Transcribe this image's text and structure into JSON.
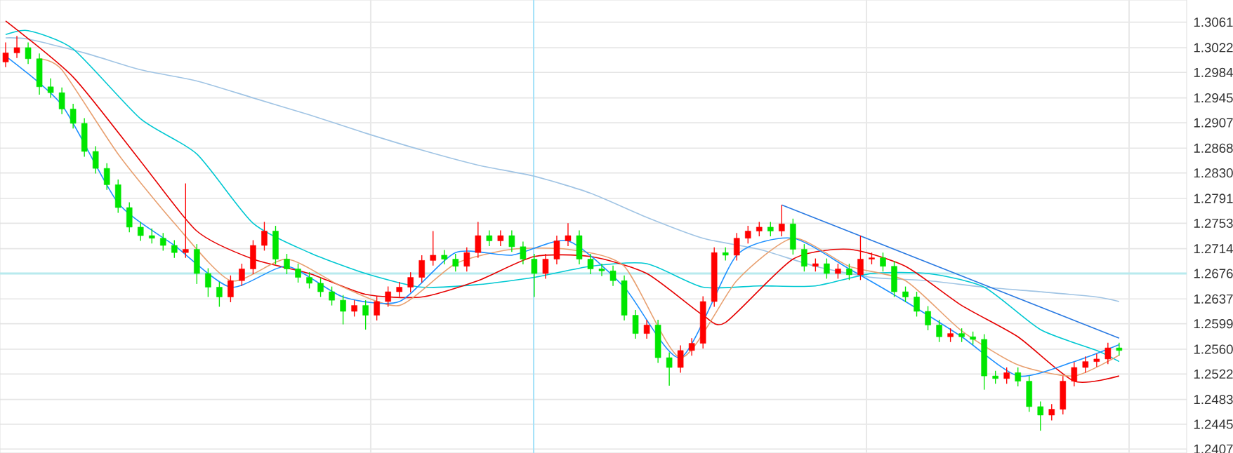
{
  "chart_data": {
    "type": "candlestick",
    "categories": [
      null,
      null,
      null,
      null,
      null,
      null,
      null,
      null,
      null,
      null,
      null,
      null,
      null,
      null,
      null,
      null,
      null,
      null,
      null,
      null,
      null,
      null,
      null,
      null,
      null,
      null,
      null,
      null,
      null,
      null,
      null,
      null,
      null,
      null,
      null,
      null,
      null,
      null,
      null,
      null,
      null,
      null,
      null,
      null,
      null,
      null,
      null,
      null,
      null,
      null,
      null,
      null,
      null,
      null,
      null,
      null,
      null,
      null,
      null,
      null,
      null,
      null,
      null,
      null,
      null,
      null,
      null,
      null,
      null,
      null,
      null,
      null,
      null,
      null,
      null,
      null,
      null,
      null,
      null,
      null,
      null,
      null,
      null,
      null,
      null,
      null,
      null,
      null,
      null,
      null,
      null,
      null,
      null,
      null,
      null,
      null,
      null,
      null,
      null,
      null
    ],
    "ohlc": [
      [
        1.3,
        1.303,
        1.2992,
        1.3014
      ],
      [
        1.3014,
        1.304,
        1.3006,
        1.3022
      ],
      [
        1.3022,
        1.303,
        1.2997,
        1.3005
      ],
      [
        1.3005,
        1.3013,
        1.295,
        1.2962
      ],
      [
        1.2962,
        1.2975,
        1.2945,
        1.2953
      ],
      [
        1.2953,
        1.2961,
        1.292,
        1.2928
      ],
      [
        1.2928,
        1.2936,
        1.2898,
        1.2906
      ],
      [
        1.2906,
        1.2914,
        1.2855,
        1.2863
      ],
      [
        1.2863,
        1.2871,
        1.2829,
        1.2837
      ],
      [
        1.2837,
        1.2845,
        1.2804,
        1.2812
      ],
      [
        1.2812,
        1.282,
        1.2769,
        1.2777
      ],
      [
        1.2777,
        1.2785,
        1.2739,
        1.2747
      ],
      [
        1.2747,
        1.2755,
        1.2726,
        1.2734
      ],
      [
        1.2734,
        1.2745,
        1.2722,
        1.273
      ],
      [
        1.273,
        1.2738,
        1.2711,
        1.2719
      ],
      [
        1.2719,
        1.2727,
        1.27,
        1.2708
      ],
      [
        1.2708,
        1.2814,
        1.27,
        1.2713
      ],
      [
        1.2713,
        1.2721,
        1.266,
        1.2676
      ],
      [
        1.2676,
        1.2684,
        1.264,
        1.2655
      ],
      [
        1.2655,
        1.2663,
        1.2625,
        1.264
      ],
      [
        1.264,
        1.2673,
        1.2632,
        1.2665
      ],
      [
        1.2665,
        1.2691,
        1.2657,
        1.2683
      ],
      [
        1.2683,
        1.2727,
        1.2675,
        1.2719
      ],
      [
        1.2719,
        1.2755,
        1.2711,
        1.2741
      ],
      [
        1.2741,
        1.2749,
        1.269,
        1.2698
      ],
      [
        1.2698,
        1.2706,
        1.2675,
        1.2683
      ],
      [
        1.2683,
        1.2691,
        1.2662,
        1.267
      ],
      [
        1.267,
        1.2678,
        1.2653,
        1.2661
      ],
      [
        1.2661,
        1.2669,
        1.264,
        1.2648
      ],
      [
        1.2648,
        1.2656,
        1.2627,
        1.2635
      ],
      [
        1.2635,
        1.2643,
        1.2598,
        1.2618
      ],
      [
        1.2618,
        1.2635,
        1.261,
        1.2627
      ],
      [
        1.2627,
        1.2635,
        1.259,
        1.2612
      ],
      [
        1.2612,
        1.2641,
        1.2604,
        1.2633
      ],
      [
        1.2633,
        1.2656,
        1.2625,
        1.2648
      ],
      [
        1.2648,
        1.2663,
        1.264,
        1.2655
      ],
      [
        1.2655,
        1.2678,
        1.2647,
        1.267
      ],
      [
        1.267,
        1.2704,
        1.2662,
        1.2696
      ],
      [
        1.2696,
        1.2741,
        1.2688,
        1.2704
      ],
      [
        1.2704,
        1.2712,
        1.269,
        1.2698
      ],
      [
        1.2698,
        1.2706,
        1.2679,
        1.2687
      ],
      [
        1.2687,
        1.2716,
        1.2679,
        1.2708
      ],
      [
        1.2708,
        1.2755,
        1.27,
        1.2734
      ],
      [
        1.2734,
        1.2742,
        1.2718,
        1.2726
      ],
      [
        1.2726,
        1.2742,
        1.2718,
        1.2734
      ],
      [
        1.2734,
        1.2742,
        1.2709,
        1.2717
      ],
      [
        1.2717,
        1.2725,
        1.269,
        1.2698
      ],
      [
        1.2698,
        1.2706,
        1.264,
        1.2676
      ],
      [
        1.2676,
        1.2706,
        1.2668,
        1.2698
      ],
      [
        1.2698,
        1.2734,
        1.269,
        1.2726
      ],
      [
        1.2726,
        1.2753,
        1.2718,
        1.2734
      ],
      [
        1.2734,
        1.2742,
        1.269,
        1.2698
      ],
      [
        1.2698,
        1.2706,
        1.2675,
        1.2683
      ],
      [
        1.2683,
        1.2691,
        1.2672,
        1.268
      ],
      [
        1.268,
        1.2688,
        1.2657,
        1.2665
      ],
      [
        1.2665,
        1.2673,
        1.2604,
        1.2612
      ],
      [
        1.2612,
        1.262,
        1.2576,
        1.2584
      ],
      [
        1.2584,
        1.2605,
        1.2576,
        1.2597
      ],
      [
        1.2597,
        1.2605,
        1.2539,
        1.2547
      ],
      [
        1.2547,
        1.2555,
        1.2504,
        1.2532
      ],
      [
        1.2532,
        1.2566,
        1.2524,
        1.2558
      ],
      [
        1.2558,
        1.2577,
        1.255,
        1.2569
      ],
      [
        1.2569,
        1.2641,
        1.2561,
        1.2633
      ],
      [
        1.2633,
        1.2716,
        1.2625,
        1.2708
      ],
      [
        1.2708,
        1.2716,
        1.2696,
        1.2704
      ],
      [
        1.2704,
        1.2738,
        1.2696,
        1.273
      ],
      [
        1.273,
        1.2749,
        1.2722,
        1.2741
      ],
      [
        1.2741,
        1.2755,
        1.2733,
        1.2747
      ],
      [
        1.2747,
        1.2755,
        1.2733,
        1.2741
      ],
      [
        1.2741,
        1.2781,
        1.2733,
        1.2752
      ],
      [
        1.2752,
        1.276,
        1.2705,
        1.2713
      ],
      [
        1.2713,
        1.2721,
        1.2679,
        1.2687
      ],
      [
        1.2687,
        1.2699,
        1.2679,
        1.2691
      ],
      [
        1.2691,
        1.2699,
        1.2668,
        1.2676
      ],
      [
        1.2676,
        1.2691,
        1.2668,
        1.2683
      ],
      [
        1.2683,
        1.2691,
        1.2666,
        1.2674
      ],
      [
        1.2674,
        1.2734,
        1.2666,
        1.2698
      ],
      [
        1.2698,
        1.2708,
        1.269,
        1.27
      ],
      [
        1.27,
        1.2708,
        1.2679,
        1.2687
      ],
      [
        1.2687,
        1.2695,
        1.264,
        1.2648
      ],
      [
        1.2648,
        1.2656,
        1.2632,
        1.264
      ],
      [
        1.264,
        1.2648,
        1.261,
        1.2618
      ],
      [
        1.2618,
        1.2626,
        1.2589,
        1.2597
      ],
      [
        1.2597,
        1.2605,
        1.2571,
        1.2579
      ],
      [
        1.2579,
        1.2592,
        1.2571,
        1.2584
      ],
      [
        1.2584,
        1.2592,
        1.2571,
        1.2579
      ],
      [
        1.2579,
        1.2587,
        1.2567,
        1.2575
      ],
      [
        1.2575,
        1.2583,
        1.2498,
        1.2519
      ],
      [
        1.2519,
        1.2527,
        1.2507,
        1.2515
      ],
      [
        1.2515,
        1.2532,
        1.2507,
        1.2524
      ],
      [
        1.2524,
        1.2532,
        1.2503,
        1.2511
      ],
      [
        1.2511,
        1.2519,
        1.2464,
        1.2472
      ],
      [
        1.2472,
        1.248,
        1.2435,
        1.2459
      ],
      [
        1.2459,
        1.2476,
        1.2451,
        1.2468
      ],
      [
        1.2468,
        1.2519,
        1.246,
        1.2511
      ],
      [
        1.2511,
        1.254,
        1.2503,
        1.2532
      ],
      [
        1.2532,
        1.2549,
        1.2524,
        1.2541
      ],
      [
        1.2541,
        1.2553,
        1.2533,
        1.2545
      ],
      [
        1.2545,
        1.257,
        1.2537,
        1.2562
      ],
      [
        1.2562,
        1.257,
        1.255,
        1.2558
      ]
    ],
    "colors": [
      "#ff0000",
      "#ff0000",
      "#00e600",
      "#00e600",
      "#00e600",
      "#00e600",
      "#00e600",
      "#00e600",
      "#00e600",
      "#00e600",
      "#00e600",
      "#00e600",
      "#00e600",
      "#00e600",
      "#00e600",
      "#00e600",
      "#ff0000",
      "#00e600",
      "#00e600",
      "#00e600",
      "#ff0000",
      "#ff0000",
      "#ff0000",
      "#ff0000",
      "#00e600",
      "#00e600",
      "#00e600",
      "#00e600",
      "#00e600",
      "#00e600",
      "#00e600",
      "#ff0000",
      "#00e600",
      "#ff0000",
      "#ff0000",
      "#ff0000",
      "#ff0000",
      "#ff0000",
      "#ff0000",
      "#00e600",
      "#00e600",
      "#ff0000",
      "#ff0000",
      "#00e600",
      "#ff0000",
      "#00e600",
      "#00e600",
      "#00e600",
      "#ff0000",
      "#ff0000",
      "#ff0000",
      "#00e600",
      "#00e600",
      "#00e600",
      "#00e600",
      "#00e600",
      "#00e600",
      "#ff0000",
      "#00e600",
      "#00e600",
      "#ff0000",
      "#ff0000",
      "#ff0000",
      "#ff0000",
      "#00e600",
      "#ff0000",
      "#ff0000",
      "#ff0000",
      "#00e600",
      "#ff0000",
      "#00e600",
      "#00e600",
      "#ff0000",
      "#00e600",
      "#ff0000",
      "#00e600",
      "#ff0000",
      "#ff0000",
      "#00e600",
      "#00e600",
      "#00e600",
      "#00e600",
      "#00e600",
      "#00e600",
      "#ff0000",
      "#00e600",
      "#00e600",
      "#00e600",
      "#00e600",
      "#ff0000",
      "#00e600",
      "#00e600",
      "#00e600",
      "#ff0000",
      "#ff0000",
      "#ff0000",
      "#ff0000",
      "#ff0000",
      "#ff0000",
      "#00e600"
    ],
    "series": [
      {
        "type": "line",
        "color": "#a0c4e4",
        "values": [
          1.3037,
          null,
          1.3035,
          null,
          null,
          null,
          null,
          1.3014,
          null,
          null,
          null,
          null,
          1.2988,
          null,
          null,
          null,
          null,
          1.2971,
          null,
          null,
          null,
          null,
          1.2945,
          null,
          null,
          null,
          null,
          1.2919,
          null,
          null,
          null,
          null,
          1.2891,
          null,
          null,
          null,
          null,
          1.2865,
          null,
          null,
          null,
          null,
          1.2842,
          null,
          null,
          null,
          null,
          1.2825,
          null,
          null,
          null,
          null,
          1.2799,
          null,
          null,
          null,
          null,
          1.2762,
          null,
          null,
          null,
          null,
          1.273,
          null,
          null,
          null,
          null,
          1.2713,
          null,
          null,
          null,
          null,
          1.2687,
          null,
          null,
          null,
          null,
          1.267,
          null,
          null,
          null,
          null,
          1.2665,
          null,
          null,
          null,
          null,
          1.2655,
          null,
          null,
          null,
          null,
          1.2648,
          null,
          null,
          null,
          null,
          1.264,
          null,
          1.2633
        ]
      },
      {
        "type": "line",
        "color": "#00c8d2",
        "values": [
          1.3042,
          null,
          1.3048,
          null,
          null,
          null,
          1.302,
          null,
          null,
          null,
          null,
          null,
          1.2913,
          null,
          null,
          null,
          null,
          1.2859,
          null,
          null,
          null,
          null,
          1.2753,
          null,
          null,
          null,
          null,
          1.2708,
          null,
          null,
          null,
          null,
          1.2676,
          null,
          null,
          null,
          null,
          1.2655,
          null,
          null,
          null,
          null,
          1.2659,
          null,
          null,
          null,
          null,
          1.267,
          null,
          null,
          null,
          null,
          1.2687,
          null,
          null,
          null,
          null,
          1.2691,
          null,
          null,
          null,
          null,
          1.2655,
          null,
          null,
          null,
          null,
          1.2657,
          null,
          null,
          null,
          null,
          1.2657,
          null,
          null,
          null,
          null,
          1.2676,
          null,
          null,
          null,
          null,
          1.2676,
          null,
          null,
          null,
          null,
          1.2655,
          null,
          null,
          null,
          null,
          1.259,
          null,
          null,
          null,
          null,
          1.2558,
          null,
          1.2541
        ]
      },
      {
        "type": "line",
        "color": "#e60000",
        "values": [
          1.3063,
          null,
          null,
          null,
          null,
          null,
          1.2977,
          null,
          null,
          null,
          null,
          null,
          1.2848,
          null,
          null,
          null,
          null,
          1.2741,
          null,
          null,
          null,
          null,
          1.2698,
          null,
          null,
          null,
          null,
          1.2676,
          null,
          null,
          null,
          null,
          1.2644,
          null,
          null,
          null,
          null,
          1.264,
          null,
          null,
          null,
          null,
          1.2665,
          null,
          null,
          null,
          null,
          1.2702,
          null,
          null,
          null,
          null,
          1.2702,
          null,
          null,
          null,
          null,
          1.2676,
          null,
          null,
          null,
          null,
          1.2612,
          null,
          1.2601,
          null,
          null,
          null,
          null,
          null,
          1.2698,
          null,
          null,
          null,
          null,
          1.2713,
          null,
          null,
          null,
          null,
          1.2687,
          null,
          null,
          null,
          null,
          1.2627,
          null,
          null,
          null,
          null,
          1.2579,
          null,
          null,
          null,
          null,
          1.2511,
          null,
          null,
          null,
          1.2519
        ]
      },
      {
        "type": "line",
        "color": "#e8a070",
        "values": [
          null,
          null,
          null,
          1.3005,
          null,
          1.2988,
          null,
          null,
          null,
          null,
          1.2859,
          null,
          null,
          null,
          null,
          1.2753,
          null,
          null,
          null,
          null,
          1.2665,
          null,
          null,
          null,
          null,
          1.2698,
          null,
          null,
          null,
          null,
          1.2655,
          null,
          null,
          null,
          null,
          1.2627,
          null,
          null,
          null,
          null,
          1.2691,
          null,
          null,
          null,
          null,
          1.2713,
          null,
          null,
          null,
          null,
          1.2713,
          null,
          null,
          null,
          null,
          1.2687,
          null,
          null,
          null,
          null,
          1.2547,
          null,
          null,
          null,
          null,
          1.2665,
          null,
          null,
          null,
          null,
          1.273,
          null,
          null,
          null,
          null,
          1.2687,
          null,
          null,
          null,
          null,
          1.2665,
          null,
          null,
          null,
          null,
          1.2588,
          null,
          null,
          null,
          null,
          1.2536,
          null,
          null,
          null,
          null,
          1.2519,
          null,
          null,
          null,
          1.2551
        ]
      },
      {
        "type": "line",
        "color": "#1e90ff",
        "values": [
          1.3009,
          null,
          null,
          null,
          null,
          1.2934,
          null,
          null,
          null,
          null,
          1.2784,
          null,
          null,
          null,
          null,
          1.2719,
          null,
          null,
          null,
          null,
          1.2655,
          null,
          null,
          null,
          null,
          1.2687,
          null,
          null,
          null,
          null,
          1.264,
          null,
          null,
          null,
          null,
          1.2633,
          null,
          null,
          null,
          null,
          1.2708,
          null,
          null,
          null,
          null,
          1.2704,
          null,
          null,
          null,
          null,
          1.2726,
          null,
          null,
          null,
          null,
          1.2655,
          null,
          null,
          null,
          null,
          1.2547,
          null,
          null,
          null,
          null,
          1.2704,
          null,
          null,
          null,
          null,
          1.273,
          null,
          null,
          null,
          null,
          1.2683,
          null,
          null,
          null,
          null,
          1.2633,
          null,
          null,
          null,
          null,
          1.2579,
          null,
          null,
          null,
          null,
          1.2519,
          null,
          null,
          null,
          null,
          1.2541,
          null,
          null,
          null,
          1.2567
        ]
      },
      {
        "type": "line",
        "color": "#2a7ae2",
        "values": [
          null,
          null,
          null,
          null,
          null,
          null,
          null,
          null,
          null,
          null,
          null,
          null,
          null,
          null,
          null,
          null,
          null,
          null,
          null,
          null,
          null,
          null,
          null,
          null,
          null,
          null,
          null,
          null,
          null,
          null,
          null,
          null,
          null,
          null,
          null,
          null,
          null,
          null,
          null,
          null,
          null,
          null,
          null,
          null,
          null,
          null,
          null,
          null,
          null,
          null,
          null,
          null,
          null,
          null,
          null,
          null,
          null,
          null,
          null,
          null,
          null,
          null,
          null,
          null,
          null,
          null,
          null,
          null,
          null,
          1.2781,
          null,
          null,
          null,
          null,
          null,
          null,
          null,
          null,
          null,
          null,
          null,
          null,
          null,
          null,
          null,
          null,
          null,
          null,
          null,
          null,
          null,
          null,
          null,
          null,
          null,
          null,
          null,
          null,
          null,
          1.2577
        ]
      }
    ],
    "ylim": [
      1.2401,
      1.3095
    ],
    "yticks": [
      1.3061,
      1.3022,
      1.2984,
      1.2945,
      1.2907,
      1.2868,
      {
        "value": 1.283,
        "label": "1.2830"
      },
      1.2791,
      1.2753,
      1.2714,
      1.2676,
      1.2637,
      1.2599,
      {
        "value": 1.256,
        "label": "1.2560"
      },
      1.2522,
      1.2483,
      1.2445,
      1.2407
    ],
    "grid": "y",
    "ref_lines": [
      {
        "axis": "y",
        "value": 1.2676,
        "color": "#b8eaee"
      }
    ]
  }
}
